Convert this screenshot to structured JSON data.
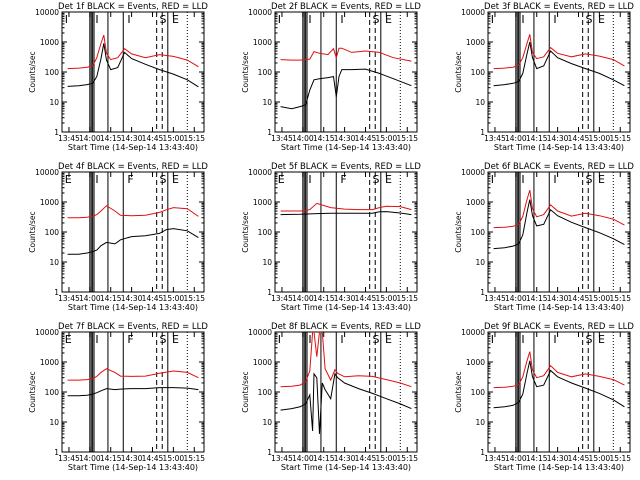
{
  "figure": {
    "start_time_label": "Start Time (14-Sep-14 13:43:40)",
    "y_axis_label": "Counts/sec"
  },
  "series_colors": {
    "events": "#000000",
    "lld": "#e01010"
  },
  "chart_data": [
    {
      "type": "line",
      "title": "Det 1f BLACK = Events, RED = LLD",
      "xlabel": "Start Time (14-Sep-14 13:43:40)",
      "ylabel": "Counts/sec",
      "x_tick_labels": [
        "13:45",
        "14:00",
        "14:15",
        "14:30",
        "14:45",
        "15:00",
        "15:15"
      ],
      "y_tick_labels": [
        "1",
        "10",
        "100",
        "1000",
        "10000"
      ],
      "y_scale": "log",
      "ylim": [
        1,
        10000
      ],
      "attenuator_labels": [
        "I",
        "I",
        "I",
        "S",
        "E"
      ],
      "series": [
        {
          "color": "black",
          "x": [
            "13:44",
            "13:52",
            "13:58",
            "14:02",
            "14:05",
            "14:08",
            "14:10",
            "14:12",
            "14:15",
            "14:20",
            "14:25",
            "14:30",
            "14:40",
            "14:50",
            "15:00",
            "15:10",
            "15:18"
          ],
          "values": [
            33,
            35,
            38,
            42,
            70,
            280,
            900,
            250,
            120,
            140,
            450,
            280,
            180,
            120,
            85,
            55,
            32
          ]
        },
        {
          "color": "red",
          "x": [
            "13:44",
            "13:52",
            "13:58",
            "14:02",
            "14:05",
            "14:08",
            "14:10",
            "14:12",
            "14:15",
            "14:20",
            "14:25",
            "14:30",
            "14:40",
            "14:50",
            "15:00",
            "15:10",
            "15:18"
          ],
          "values": [
            130,
            135,
            145,
            160,
            300,
            900,
            1700,
            420,
            260,
            300,
            600,
            400,
            300,
            380,
            330,
            250,
            150
          ]
        }
      ]
    },
    {
      "type": "line",
      "title": "Det 2f BLACK = Events, RED = LLD",
      "xlabel": "Start Time (14-Sep-14 13:43:40)",
      "ylabel": "Counts/sec",
      "x_tick_labels": [
        "13:45",
        "14:00",
        "14:15",
        "14:30",
        "14:45",
        "15:00",
        "15:15"
      ],
      "y_tick_labels": [
        "1",
        "10",
        "100",
        "1000",
        "10000"
      ],
      "y_scale": "log",
      "ylim": [
        1,
        10000
      ],
      "attenuator_labels": [
        "I",
        "I",
        "I",
        "S",
        "E"
      ],
      "series": [
        {
          "color": "black",
          "x": [
            "13:44",
            "13:52",
            "13:58",
            "14:02",
            "14:05",
            "14:08",
            "14:12",
            "14:18",
            "14:22",
            "14:24",
            "14:26",
            "14:28",
            "14:35",
            "14:45",
            "14:55",
            "15:05",
            "15:18"
          ],
          "values": [
            7,
            6,
            7,
            8,
            25,
            55,
            60,
            65,
            70,
            15,
            70,
            120,
            120,
            125,
            90,
            60,
            35
          ]
        },
        {
          "color": "red",
          "x": [
            "13:44",
            "13:52",
            "13:58",
            "14:02",
            "14:05",
            "14:08",
            "14:12",
            "14:18",
            "14:22",
            "14:24",
            "14:26",
            "14:28",
            "14:35",
            "14:45",
            "14:55",
            "15:05",
            "15:18"
          ],
          "values": [
            260,
            250,
            250,
            260,
            270,
            480,
            420,
            380,
            600,
            300,
            620,
            620,
            450,
            500,
            450,
            300,
            230
          ]
        }
      ]
    },
    {
      "type": "line",
      "title": "Det 3f BLACK = Events, RED = LLD",
      "xlabel": "Start Time (14-Sep-14 13:43:40)",
      "ylabel": "Counts/sec",
      "x_tick_labels": [
        "13:45",
        "14:00",
        "14:15",
        "14:30",
        "14:45",
        "15:00",
        "15:15"
      ],
      "y_tick_labels": [
        "1",
        "10",
        "100",
        "1000",
        "10000"
      ],
      "y_scale": "log",
      "ylim": [
        1,
        10000
      ],
      "attenuator_labels": [
        "I",
        "I",
        "I",
        "S",
        "E"
      ],
      "series": [
        {
          "color": "black",
          "x": [
            "13:44",
            "13:52",
            "13:58",
            "14:02",
            "14:05",
            "14:08",
            "14:10",
            "14:12",
            "14:15",
            "14:20",
            "14:25",
            "14:30",
            "14:40",
            "14:50",
            "15:00",
            "15:10",
            "15:18"
          ],
          "values": [
            35,
            38,
            42,
            48,
            90,
            400,
            1000,
            300,
            130,
            160,
            500,
            300,
            190,
            130,
            90,
            55,
            35
          ]
        },
        {
          "color": "red",
          "x": [
            "13:44",
            "13:52",
            "13:58",
            "14:02",
            "14:05",
            "14:08",
            "14:10",
            "14:12",
            "14:15",
            "14:20",
            "14:25",
            "14:30",
            "14:40",
            "14:50",
            "15:00",
            "15:10",
            "15:18"
          ],
          "values": [
            130,
            135,
            145,
            170,
            300,
            900,
            1800,
            450,
            280,
            320,
            650,
            420,
            320,
            400,
            340,
            260,
            160
          ]
        }
      ]
    },
    {
      "type": "line",
      "title": "Det 4f BLACK = Events, RED = LLD",
      "xlabel": "Start Time (14-Sep-14 13:43:40)",
      "ylabel": "Counts/sec",
      "x_tick_labels": [
        "13:45",
        "14:00",
        "14:15",
        "14:30",
        "14:45",
        "15:00",
        "15:15"
      ],
      "y_tick_labels": [
        "1",
        "10",
        "100",
        "1000",
        "10000"
      ],
      "y_scale": "log",
      "ylim": [
        1,
        10000
      ],
      "attenuator_labels": [
        "E",
        "I",
        "F",
        "S",
        "E"
      ],
      "series": [
        {
          "color": "black",
          "x": [
            "13:44",
            "13:52",
            "13:58",
            "14:02",
            "14:05",
            "14:08",
            "14:12",
            "14:18",
            "14:22",
            "14:30",
            "14:40",
            "14:50",
            "14:55",
            "15:00",
            "15:10",
            "15:18"
          ],
          "values": [
            18,
            18,
            20,
            22,
            25,
            35,
            45,
            40,
            55,
            70,
            75,
            90,
            120,
            130,
            110,
            65
          ]
        },
        {
          "color": "red",
          "x": [
            "13:44",
            "13:52",
            "13:58",
            "14:02",
            "14:05",
            "14:08",
            "14:12",
            "14:18",
            "14:22",
            "14:30",
            "14:40",
            "14:50",
            "14:55",
            "15:00",
            "15:10",
            "15:18"
          ],
          "values": [
            300,
            300,
            310,
            330,
            380,
            500,
            750,
            500,
            360,
            350,
            360,
            450,
            550,
            650,
            600,
            330
          ]
        }
      ]
    },
    {
      "type": "line",
      "title": "Det 5f BLACK = Events, RED = LLD",
      "xlabel": "Start Time (14-Sep-14 13:43:40)",
      "ylabel": "Counts/sec",
      "x_tick_labels": [
        "13:45",
        "14:00",
        "14:15",
        "14:30",
        "14:45",
        "15:00",
        "15:15"
      ],
      "y_tick_labels": [
        "1",
        "10",
        "100",
        "1000",
        "10000"
      ],
      "y_scale": "log",
      "ylim": [
        1,
        10000
      ],
      "attenuator_labels": [
        "E",
        "I",
        "F",
        "S",
        "E"
      ],
      "series": [
        {
          "color": "black",
          "x": [
            "13:44",
            "13:52",
            "13:58",
            "14:02",
            "14:05",
            "14:10",
            "14:20",
            "14:30",
            "14:40",
            "14:50",
            "14:55",
            "15:00",
            "15:10",
            "15:18"
          ],
          "values": [
            380,
            385,
            390,
            395,
            400,
            410,
            420,
            420,
            420,
            420,
            470,
            480,
            430,
            380
          ]
        },
        {
          "color": "red",
          "x": [
            "13:44",
            "13:52",
            "13:58",
            "14:02",
            "14:05",
            "14:10",
            "14:20",
            "14:30",
            "14:40",
            "14:50",
            "14:55",
            "15:00",
            "15:10",
            "15:18"
          ],
          "values": [
            500,
            500,
            500,
            510,
            560,
            900,
            650,
            580,
            560,
            560,
            650,
            720,
            700,
            560
          ]
        }
      ]
    },
    {
      "type": "line",
      "title": "Det 6f BLACK = Events, RED = LLD",
      "xlabel": "Start Time (14-Sep-14 13:43:40)",
      "ylabel": "Counts/sec",
      "x_tick_labels": [
        "13:45",
        "14:00",
        "14:15",
        "14:30",
        "14:45",
        "15:00",
        "15:15"
      ],
      "y_tick_labels": [
        "1",
        "10",
        "100",
        "1000",
        "10000"
      ],
      "y_scale": "log",
      "ylim": [
        1,
        10000
      ],
      "attenuator_labels": [
        "I",
        "I",
        "I",
        "S",
        "E"
      ],
      "series": [
        {
          "color": "black",
          "x": [
            "13:44",
            "13:52",
            "13:58",
            "14:02",
            "14:05",
            "14:08",
            "14:10",
            "14:12",
            "14:15",
            "14:20",
            "14:25",
            "14:30",
            "14:40",
            "14:50",
            "15:00",
            "15:10",
            "15:18"
          ],
          "values": [
            28,
            30,
            34,
            40,
            80,
            450,
            1200,
            350,
            160,
            180,
            550,
            350,
            210,
            140,
            95,
            60,
            38
          ]
        },
        {
          "color": "red",
          "x": [
            "13:44",
            "13:52",
            "13:58",
            "14:02",
            "14:05",
            "14:08",
            "14:10",
            "14:12",
            "14:15",
            "14:20",
            "14:25",
            "14:30",
            "14:40",
            "14:50",
            "15:00",
            "15:10",
            "15:18"
          ],
          "values": [
            140,
            145,
            155,
            180,
            330,
            1200,
            2500,
            600,
            320,
            380,
            800,
            500,
            340,
            420,
            350,
            270,
            170
          ]
        }
      ]
    },
    {
      "type": "line",
      "title": "Det 7f BLACK = Events, RED = LLD",
      "xlabel": "Start Time (14-Sep-14 13:43:40)",
      "ylabel": "Counts/sec",
      "x_tick_labels": [
        "13:45",
        "14:00",
        "14:15",
        "14:30",
        "14:45",
        "15:00",
        "15:15"
      ],
      "y_tick_labels": [
        "1",
        "10",
        "100",
        "1000",
        "10000"
      ],
      "y_scale": "log",
      "ylim": [
        1,
        10000
      ],
      "attenuator_labels": [
        "E",
        "I",
        "F",
        "S",
        "E"
      ],
      "series": [
        {
          "color": "black",
          "x": [
            "13:44",
            "13:52",
            "13:58",
            "14:02",
            "14:05",
            "14:08",
            "14:12",
            "14:18",
            "14:22",
            "14:30",
            "14:40",
            "14:50",
            "15:00",
            "15:10",
            "15:18"
          ],
          "values": [
            75,
            75,
            78,
            85,
            95,
            110,
            130,
            120,
            125,
            130,
            130,
            140,
            140,
            135,
            120
          ]
        },
        {
          "color": "red",
          "x": [
            "13:44",
            "13:52",
            "13:58",
            "14:02",
            "14:05",
            "14:08",
            "14:12",
            "14:18",
            "14:22",
            "14:30",
            "14:40",
            "14:50",
            "15:00",
            "15:10",
            "15:18"
          ],
          "values": [
            250,
            250,
            260,
            280,
            330,
            450,
            600,
            450,
            340,
            330,
            340,
            420,
            500,
            450,
            300
          ]
        }
      ]
    },
    {
      "type": "line",
      "title": "Det 8f BLACK = Events, RED = LLD",
      "xlabel": "Start Time (14-Sep-14 13:43:40)",
      "ylabel": "Counts/sec",
      "x_tick_labels": [
        "13:45",
        "14:00",
        "14:15",
        "14:30",
        "14:45",
        "15:00",
        "15:15"
      ],
      "y_tick_labels": [
        "1",
        "10",
        "100",
        "1000",
        "10000"
      ],
      "y_scale": "log",
      "ylim": [
        1,
        10000
      ],
      "attenuator_labels": [
        "I",
        "I",
        "I",
        "S",
        "E"
      ],
      "series": [
        {
          "color": "black",
          "x": [
            "13:44",
            "13:52",
            "13:58",
            "14:02",
            "14:05",
            "14:07",
            "14:08",
            "14:10",
            "14:12",
            "14:14",
            "14:16",
            "14:20",
            "14:23",
            "14:25",
            "14:30",
            "14:40",
            "14:50",
            "15:00",
            "15:10",
            "15:18"
          ],
          "values": [
            25,
            28,
            32,
            40,
            80,
            5,
            400,
            300,
            4,
            200,
            120,
            60,
            400,
            300,
            200,
            130,
            90,
            60,
            40,
            28
          ]
        },
        {
          "color": "red",
          "x": [
            "13:44",
            "13:52",
            "13:58",
            "14:02",
            "14:05",
            "14:07",
            "14:08",
            "14:10",
            "14:12",
            "14:14",
            "14:16",
            "14:20",
            "14:23",
            "14:25",
            "14:30",
            "14:40",
            "14:50",
            "15:00",
            "15:10",
            "15:18"
          ],
          "values": [
            150,
            155,
            170,
            220,
            500,
            10000,
            10000,
            1500,
            10000,
            10000,
            600,
            250,
            550,
            420,
            320,
            350,
            330,
            260,
            200,
            150
          ]
        }
      ]
    },
    {
      "type": "line",
      "title": "Det 9f BLACK = Events, RED = LLD",
      "xlabel": "Start Time (14-Sep-14 13:43:40)",
      "ylabel": "Counts/sec",
      "x_tick_labels": [
        "13:45",
        "14:00",
        "14:15",
        "14:30",
        "14:45",
        "15:00",
        "15:15"
      ],
      "y_tick_labels": [
        "1",
        "10",
        "100",
        "1000",
        "10000"
      ],
      "y_scale": "log",
      "ylim": [
        1,
        10000
      ],
      "attenuator_labels": [
        "I",
        "I",
        "I",
        "S",
        "E"
      ],
      "series": [
        {
          "color": "black",
          "x": [
            "13:44",
            "13:52",
            "13:58",
            "14:02",
            "14:05",
            "14:08",
            "14:10",
            "14:12",
            "14:15",
            "14:20",
            "14:25",
            "14:30",
            "14:40",
            "14:50",
            "15:00",
            "15:10",
            "15:18"
          ],
          "values": [
            30,
            32,
            36,
            45,
            85,
            420,
            1100,
            320,
            150,
            170,
            520,
            320,
            200,
            135,
            90,
            55,
            32
          ]
        },
        {
          "color": "red",
          "x": [
            "13:44",
            "13:52",
            "13:58",
            "14:02",
            "14:05",
            "14:08",
            "14:10",
            "14:12",
            "14:15",
            "14:20",
            "14:25",
            "14:30",
            "14:40",
            "14:50",
            "15:00",
            "15:10",
            "15:18"
          ],
          "values": [
            140,
            145,
            155,
            175,
            320,
            1100,
            2200,
            550,
            300,
            350,
            750,
            450,
            320,
            400,
            330,
            260,
            170
          ]
        }
      ]
    }
  ]
}
